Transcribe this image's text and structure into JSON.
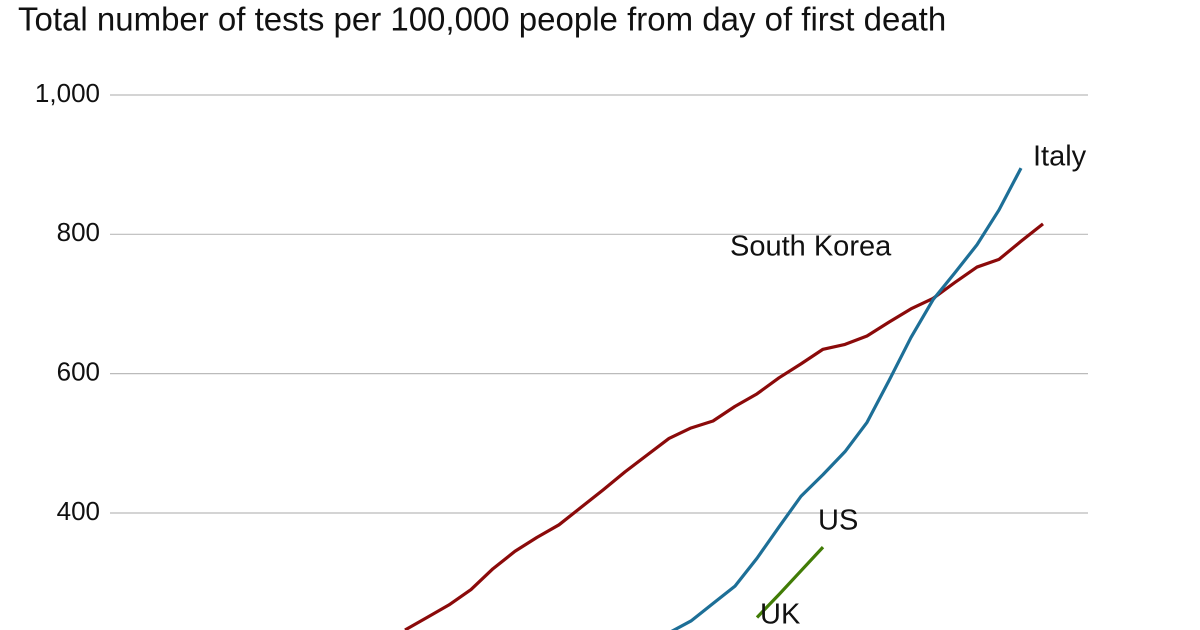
{
  "chart_data": {
    "type": "line",
    "title": "Total number of tests per 100,000 people from day of first death",
    "categories": [
      null,
      null,
      null,
      null,
      null,
      null,
      null,
      null,
      null,
      null,
      null,
      null,
      null,
      null,
      null,
      null,
      null,
      null,
      null,
      null,
      null,
      null,
      null,
      null,
      null,
      null,
      null,
      null,
      null,
      null
    ],
    "series": [
      {
        "name": "South Korea",
        "color": "#8b0a0a",
        "values": [
          232,
          250,
          268,
          290,
          320,
          345,
          365,
          383,
          408,
          433,
          459,
          483,
          507,
          522,
          532,
          553,
          571,
          594,
          614,
          635,
          642,
          654,
          674,
          693,
          708,
          731,
          753,
          764,
          790,
          815
        ]
      },
      {
        "name": "Italy",
        "color": "#1d6f97",
        "values": [
          null,
          null,
          null,
          null,
          null,
          null,
          null,
          null,
          null,
          null,
          null,
          null,
          228,
          245,
          270,
          295,
          335,
          380,
          424,
          455,
          488,
          530,
          590,
          652,
          706,
          745,
          785,
          835,
          895,
          null
        ]
      },
      {
        "name": "US",
        "color": "#417c06",
        "values": [
          null,
          null,
          null,
          null,
          null,
          null,
          null,
          null,
          null,
          null,
          null,
          null,
          null,
          null,
          null,
          null,
          250,
          283,
          317,
          351,
          null,
          null,
          null,
          null,
          null,
          null,
          null,
          null,
          null,
          null
        ]
      },
      {
        "name": "UK",
        "color": "#417c06",
        "values": [
          null,
          null,
          null,
          null,
          null,
          null,
          null,
          null,
          null,
          null,
          null,
          null,
          null,
          null,
          null,
          null,
          null,
          null,
          null,
          null,
          null,
          null,
          null,
          null,
          null,
          null,
          null,
          null,
          null,
          null
        ]
      }
    ],
    "ylim": [
      232,
      1000
    ],
    "yticks": [
      400,
      600,
      800,
      {
        "value": 1000,
        "label": "1,000"
      }
    ],
    "grid": true
  }
}
